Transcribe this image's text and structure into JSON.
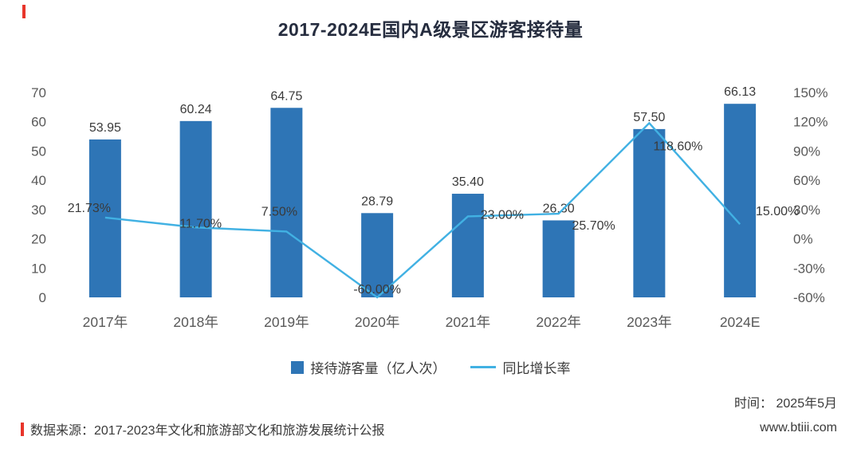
{
  "title": "2017-2024E国内A级景区游客接待量",
  "chart_data": {
    "type": "bar+line combo",
    "title": "2017-2024E国内A级景区游客接待量",
    "categories": [
      "2017年",
      "2018年",
      "2019年",
      "2020年",
      "2021年",
      "2022年",
      "2023年",
      "2024E"
    ],
    "series": [
      {
        "name": "接待游客量（亿人次）",
        "type": "bar",
        "axis": "left",
        "values": [
          53.95,
          60.24,
          64.75,
          28.79,
          35.4,
          26.3,
          57.5,
          66.13
        ],
        "labels": [
          "53.95",
          "60.24",
          "64.75",
          "28.79",
          "35.40",
          "26.30",
          "57.50",
          "66.13"
        ],
        "color": "#2E75B6"
      },
      {
        "name": "同比增长率",
        "type": "line",
        "axis": "right",
        "values": [
          21.73,
          11.7,
          7.5,
          -60.0,
          23.0,
          25.7,
          118.6,
          15.0
        ],
        "labels": [
          "21.73%",
          "11.70%",
          "7.50%",
          "-60.00%",
          "23.00%",
          "25.70%",
          "118.60%",
          "15.00%"
        ],
        "color": "#41B1E3"
      }
    ],
    "left_axis": {
      "min": 0,
      "max": 70,
      "step": 10,
      "ticks": [
        "0",
        "10",
        "20",
        "30",
        "40",
        "50",
        "60",
        "70"
      ]
    },
    "right_axis": {
      "min": -60,
      "max": 150,
      "step": 30,
      "ticks": [
        "-60%",
        "-30%",
        "0%",
        "30%",
        "60%",
        "90%",
        "120%",
        "150%"
      ]
    },
    "grid": false,
    "legend_position": "bottom"
  },
  "legend": {
    "bar_label": "接待游客量（亿人次）",
    "line_label": "同比增长率"
  },
  "footer": {
    "source": "数据来源：2017-2023年文化和旅游部文化和旅游发展统计公报",
    "time_label": "时间：  2025年5月",
    "website": "www.btiii.com"
  },
  "colors": {
    "bar": "#2E75B6",
    "line": "#41B1E3",
    "accent_red": "#E8352B",
    "axis_text": "#595959",
    "label_text": "#3A3A3A"
  }
}
